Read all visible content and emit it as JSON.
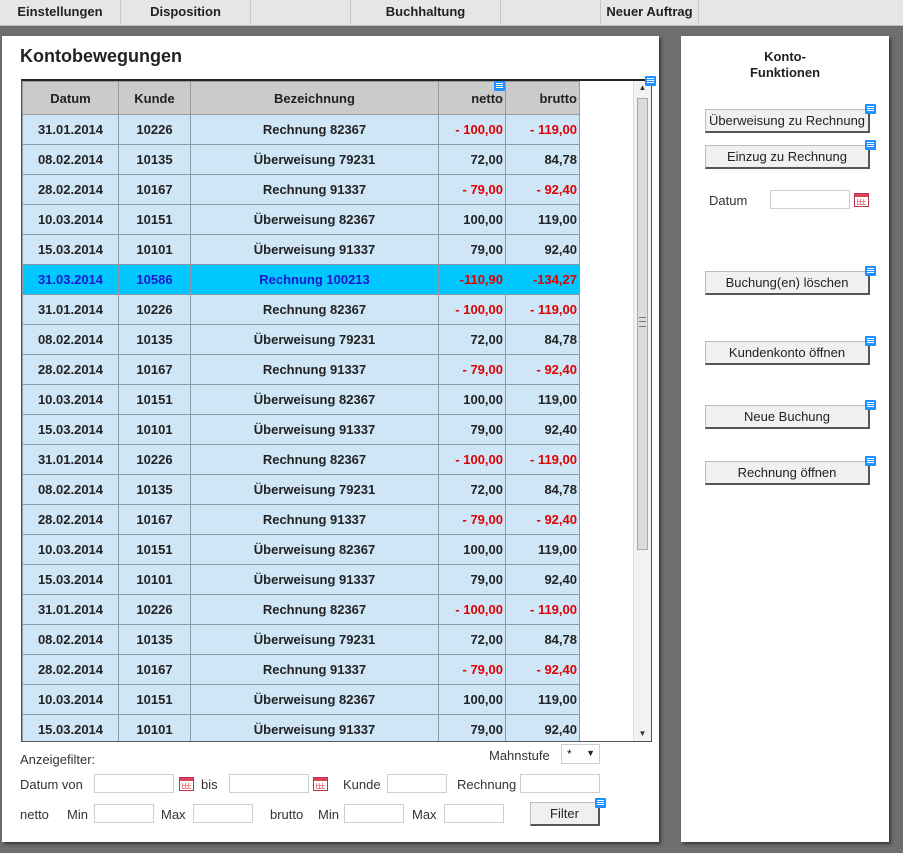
{
  "menu": {
    "items": [
      "Einstellungen",
      "Disposition",
      "",
      "Buchhaltung",
      "",
      "Neuer Auftrag"
    ]
  },
  "main": {
    "title": "Kontobewegungen",
    "columns": [
      "Datum",
      "Kunde",
      "Bezeichnung",
      "netto",
      "brutto"
    ],
    "selected_row_index": 5,
    "rows": [
      {
        "datum": "31.01.2014",
        "kunde": "10226",
        "bez": "Rechnung 82367",
        "netto": "- 100,00",
        "brutto": "- 119,00",
        "neg": true
      },
      {
        "datum": "08.02.2014",
        "kunde": "10135",
        "bez": "Überweisung 79231",
        "netto": "72,00",
        "brutto": "84,78",
        "neg": false
      },
      {
        "datum": "28.02.2014",
        "kunde": "10167",
        "bez": "Rechnung 91337",
        "netto": "- 79,00",
        "brutto": "- 92,40",
        "neg": true
      },
      {
        "datum": "10.03.2014",
        "kunde": "10151",
        "bez": "Überweisung 82367",
        "netto": "100,00",
        "brutto": "119,00",
        "neg": false
      },
      {
        "datum": "15.03.2014",
        "kunde": "10101",
        "bez": "Überweisung 91337",
        "netto": "79,00",
        "brutto": "92,40",
        "neg": false
      },
      {
        "datum": "31.03.2014",
        "kunde": "10586",
        "bez": "Rechnung 100213",
        "netto": "-110,90",
        "brutto": "-134,27",
        "neg": true
      },
      {
        "datum": "31.01.2014",
        "kunde": "10226",
        "bez": "Rechnung 82367",
        "netto": "- 100,00",
        "brutto": "- 119,00",
        "neg": true
      },
      {
        "datum": "08.02.2014",
        "kunde": "10135",
        "bez": "Überweisung 79231",
        "netto": "72,00",
        "brutto": "84,78",
        "neg": false
      },
      {
        "datum": "28.02.2014",
        "kunde": "10167",
        "bez": "Rechnung 91337",
        "netto": "- 79,00",
        "brutto": "- 92,40",
        "neg": true
      },
      {
        "datum": "10.03.2014",
        "kunde": "10151",
        "bez": "Überweisung 82367",
        "netto": "100,00",
        "brutto": "119,00",
        "neg": false
      },
      {
        "datum": "15.03.2014",
        "kunde": "10101",
        "bez": "Überweisung 91337",
        "netto": "79,00",
        "brutto": "92,40",
        "neg": false
      },
      {
        "datum": "31.01.2014",
        "kunde": "10226",
        "bez": "Rechnung 82367",
        "netto": "- 100,00",
        "brutto": "- 119,00",
        "neg": true
      },
      {
        "datum": "08.02.2014",
        "kunde": "10135",
        "bez": "Überweisung 79231",
        "netto": "72,00",
        "brutto": "84,78",
        "neg": false
      },
      {
        "datum": "28.02.2014",
        "kunde": "10167",
        "bez": "Rechnung 91337",
        "netto": "- 79,00",
        "brutto": "- 92,40",
        "neg": true
      },
      {
        "datum": "10.03.2014",
        "kunde": "10151",
        "bez": "Überweisung 82367",
        "netto": "100,00",
        "brutto": "119,00",
        "neg": false
      },
      {
        "datum": "15.03.2014",
        "kunde": "10101",
        "bez": "Überweisung 91337",
        "netto": "79,00",
        "brutto": "92,40",
        "neg": false
      },
      {
        "datum": "31.01.2014",
        "kunde": "10226",
        "bez": "Rechnung 82367",
        "netto": "- 100,00",
        "brutto": "- 119,00",
        "neg": true
      },
      {
        "datum": "08.02.2014",
        "kunde": "10135",
        "bez": "Überweisung 79231",
        "netto": "72,00",
        "brutto": "84,78",
        "neg": false
      },
      {
        "datum": "28.02.2014",
        "kunde": "10167",
        "bez": "Rechnung 91337",
        "netto": "- 79,00",
        "brutto": "- 92,40",
        "neg": true
      },
      {
        "datum": "10.03.2014",
        "kunde": "10151",
        "bez": "Überweisung 82367",
        "netto": "100,00",
        "brutto": "119,00",
        "neg": false
      },
      {
        "datum": "15.03.2014",
        "kunde": "10101",
        "bez": "Überweisung 91337",
        "netto": "79,00",
        "brutto": "92,40",
        "neg": false
      }
    ]
  },
  "filter": {
    "title": "Anzeigefilter:",
    "mahnstufe_label": "Mahnstufe",
    "mahnstufe_value": "*",
    "datum_von_label": "Datum von",
    "bis_label": "bis",
    "kunde_label": "Kunde",
    "rechnung_label": "Rechnung",
    "netto_label": "netto",
    "brutto_label": "brutto",
    "min_label": "Min",
    "max_label": "Max",
    "filter_button": "Filter"
  },
  "side": {
    "title_line1": "Konto-",
    "title_line2": "Funktionen",
    "datum_label": "Datum",
    "buttons": {
      "ueberweisung": "Überweisung zu Rechnung",
      "einzug": "Einzug zu Rechnung",
      "loeschen": "Buchung(en) löschen",
      "kundenkonto": "Kundenkonto öffnen",
      "neue_buchung": "Neue Buchung",
      "rechnung": "Rechnung öffnen"
    }
  },
  "colors": {
    "row_bg": "#cfe6f7",
    "selected_row_bg": "#00c8ff",
    "negative_text": "#e00000",
    "selected_text": "#1a1acc"
  }
}
